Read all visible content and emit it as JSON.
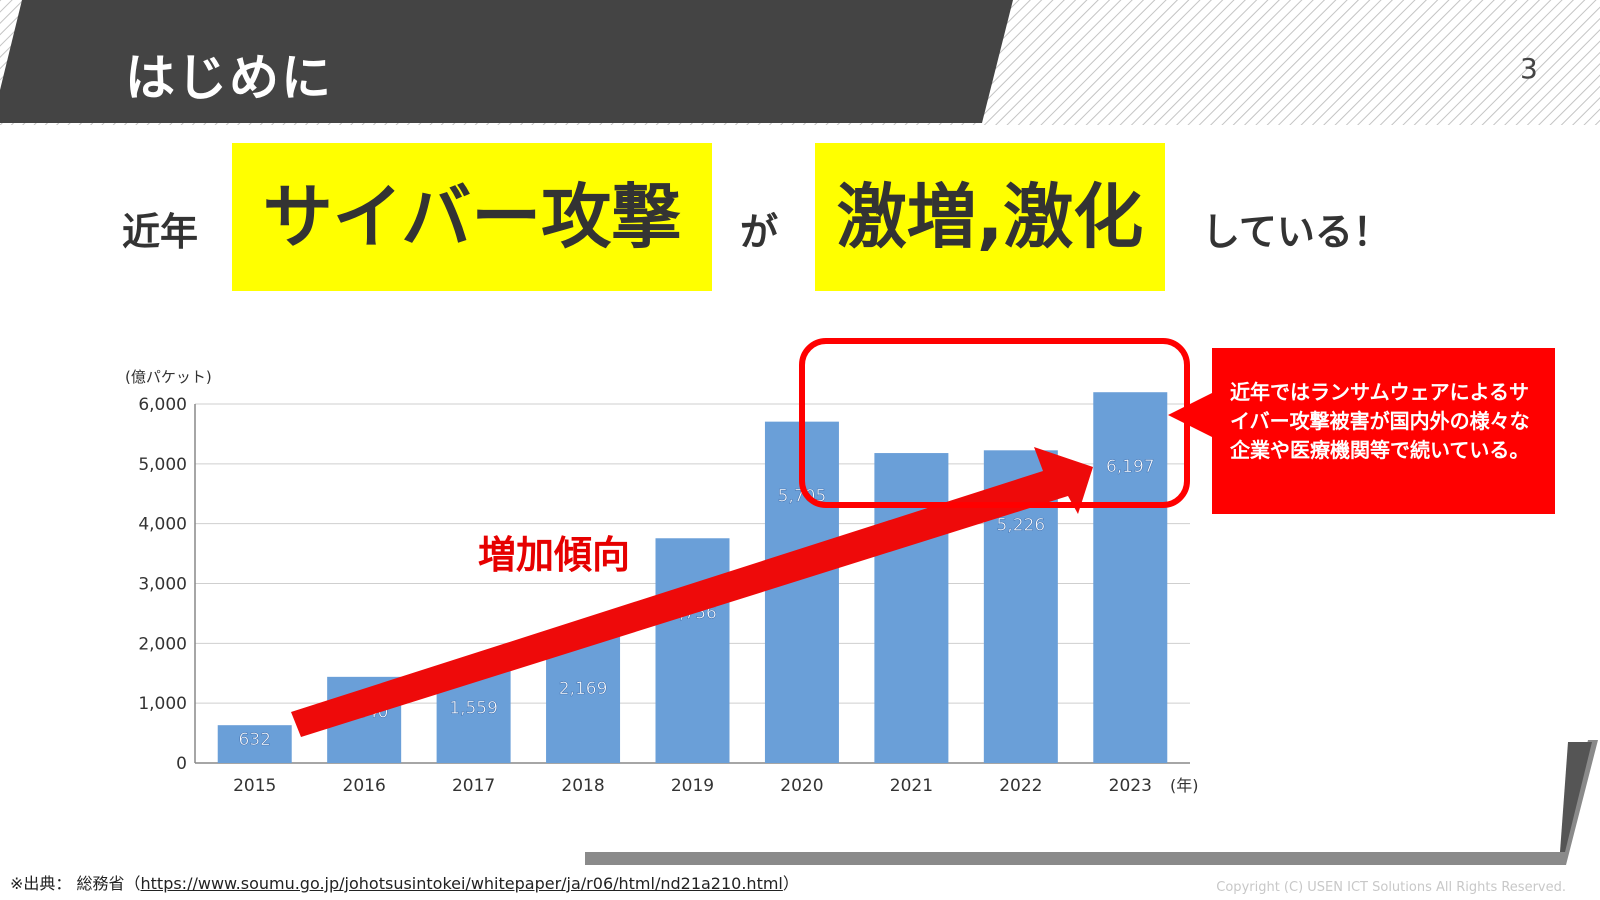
{
  "header": {
    "title": "はじめに",
    "page_number": "3"
  },
  "headline": {
    "part1": "近年",
    "part2": "サイバー攻撃",
    "part3": "が",
    "part4": "激増,激化",
    "part5": "している！"
  },
  "colors": {
    "header_dark": "#444444",
    "highlight": "#ffff00",
    "accent_red": "#ff0000",
    "bar_blue": "#6a9fd8"
  },
  "chart_data": {
    "type": "bar",
    "ylabel": "(億パケット)",
    "xlabel": "(年)",
    "categories": [
      "2015",
      "2016",
      "2017",
      "2018",
      "2019",
      "2020",
      "2021",
      "2022",
      "2023"
    ],
    "values": [
      632,
      1440,
      1559,
      2169,
      3756,
      5705,
      5180,
      5226,
      6197
    ],
    "data_labels": [
      "632",
      "1,440",
      "1,559",
      "2,169",
      "3,756",
      "5,705",
      "5,180",
      "5,226",
      "6,197"
    ],
    "ylim": [
      0,
      6000
    ],
    "yticks": [
      0,
      1000,
      2000,
      3000,
      4000,
      5000,
      6000
    ],
    "ytick_labels": [
      "0",
      "1,000",
      "2,000",
      "3,000",
      "4,000",
      "5,000",
      "6,000"
    ],
    "grid": true,
    "annotation": "増加傾向"
  },
  "callout": {
    "text": "近年ではランサムウェアによるサイバー攻撃被害が国内外の様々な企業や医療機関等で続いている。"
  },
  "footer": {
    "source_prefix": "※出典： 総務省（",
    "source_url": "https://www.soumu.go.jp/johotsusintokei/whitepaper/ja/r06/html/nd21a210.html",
    "source_suffix": "）",
    "copyright": "Copyright (C) USEN ICT Solutions All Rights Reserved."
  }
}
